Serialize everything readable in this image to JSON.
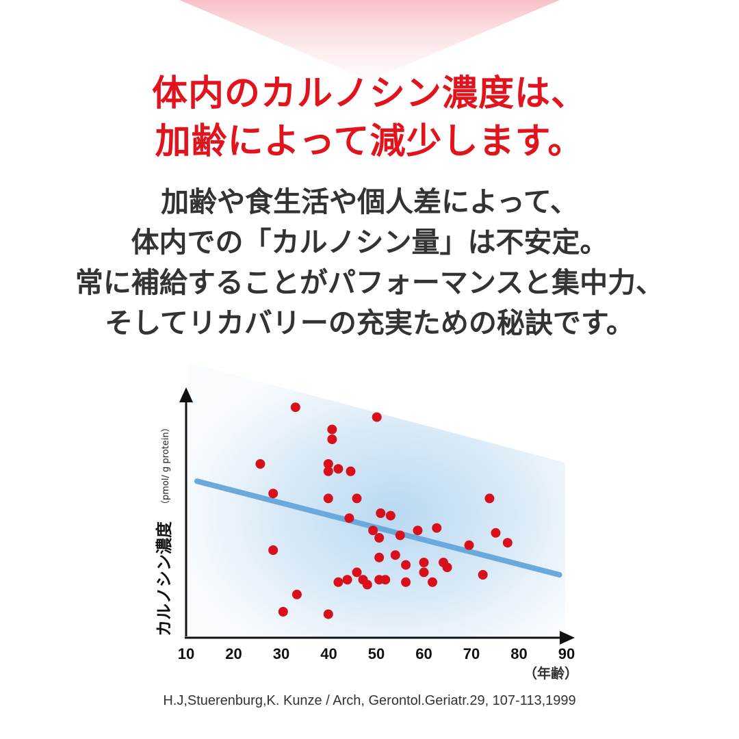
{
  "headline": {
    "line1": "体内のカルノシン濃度は、",
    "line2": "加齢によって減少します。"
  },
  "body": {
    "line1": "加齢や食生活や個人差によって、",
    "line2": "体内での「カルノシン量」は不安定。",
    "line3": "常に補給することがパフォーマンスと集中力、",
    "line4": "そしてリカバリーの充実ための秘訣です。"
  },
  "colors": {
    "headline": "#e1141e",
    "body_text": "#333333",
    "points": "#d8101c",
    "trend": "#6aa9dc",
    "wedge": "#f8c8cc",
    "plot_bg": "#c5dff2"
  },
  "chart_data": {
    "type": "scatter",
    "xlabel": "（年齢）",
    "ylabel": "カルノシン濃度",
    "ylabel_unit": "（pmol/ g protein）",
    "xlim": [
      10,
      90
    ],
    "ylim": [
      0,
      100
    ],
    "xticks": [
      "10",
      "20",
      "30",
      "40",
      "50",
      "60",
      "70",
      "80",
      "90"
    ],
    "yticks_visible": false,
    "grid": false,
    "legend": "none",
    "points": [
      {
        "x": 25.6,
        "y": 70
      },
      {
        "x": 28.3,
        "y": 58
      },
      {
        "x": 28.3,
        "y": 35
      },
      {
        "x": 30.4,
        "y": 10
      },
      {
        "x": 33.0,
        "y": 93
      },
      {
        "x": 33.3,
        "y": 17
      },
      {
        "x": 39.9,
        "y": 70
      },
      {
        "x": 39.9,
        "y": 67
      },
      {
        "x": 39.9,
        "y": 56
      },
      {
        "x": 39.9,
        "y": 9
      },
      {
        "x": 40.7,
        "y": 84
      },
      {
        "x": 40.7,
        "y": 80
      },
      {
        "x": 42.0,
        "y": 68
      },
      {
        "x": 42.0,
        "y": 22
      },
      {
        "x": 43.9,
        "y": 23
      },
      {
        "x": 44.3,
        "y": 48
      },
      {
        "x": 44.6,
        "y": 67
      },
      {
        "x": 45.9,
        "y": 56
      },
      {
        "x": 45.9,
        "y": 26
      },
      {
        "x": 47.2,
        "y": 23
      },
      {
        "x": 48.1,
        "y": 21
      },
      {
        "x": 49.3,
        "y": 43
      },
      {
        "x": 50.1,
        "y": 89
      },
      {
        "x": 50.6,
        "y": 32
      },
      {
        "x": 50.6,
        "y": 23
      },
      {
        "x": 50.6,
        "y": 40
      },
      {
        "x": 50.9,
        "y": 50
      },
      {
        "x": 51.9,
        "y": 23
      },
      {
        "x": 53.0,
        "y": 49
      },
      {
        "x": 54.0,
        "y": 33
      },
      {
        "x": 55.0,
        "y": 41
      },
      {
        "x": 56.2,
        "y": 29
      },
      {
        "x": 56.2,
        "y": 22
      },
      {
        "x": 58.7,
        "y": 43
      },
      {
        "x": 60.0,
        "y": 30
      },
      {
        "x": 60.0,
        "y": 26
      },
      {
        "x": 61.8,
        "y": 22
      },
      {
        "x": 62.7,
        "y": 44
      },
      {
        "x": 64.1,
        "y": 30
      },
      {
        "x": 64.9,
        "y": 28
      },
      {
        "x": 69.5,
        "y": 37
      },
      {
        "x": 72.4,
        "y": 25
      },
      {
        "x": 73.8,
        "y": 56
      },
      {
        "x": 75.1,
        "y": 42
      },
      {
        "x": 77.6,
        "y": 38
      }
    ],
    "trendline": {
      "x": [
        12.3,
        88.5
      ],
      "y": [
        63,
        25
      ]
    }
  },
  "citation": "H.J,Stuerenburg,K. Kunze / Arch, Gerontol.Geriatr.29, 107-113,1999"
}
